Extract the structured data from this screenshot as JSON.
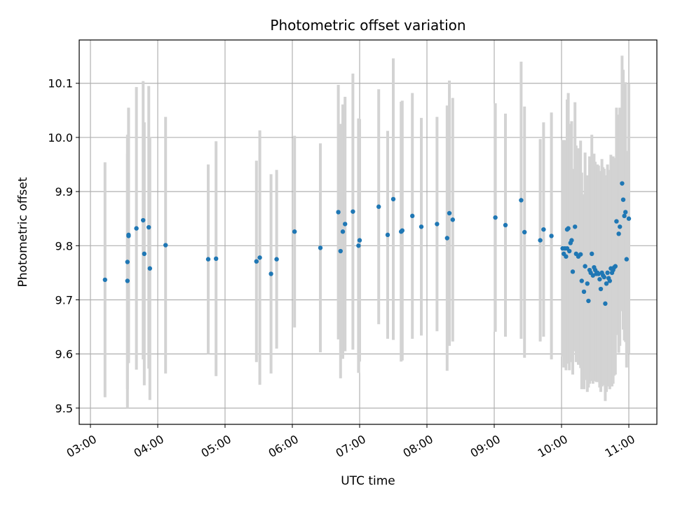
{
  "chart_data": {
    "type": "scatter",
    "title": "Photometric offset variation",
    "xlabel": "UTC time",
    "ylabel": "Photometric offset",
    "xlim": [
      "02:50",
      "11:25"
    ],
    "ylim": [
      9.47,
      10.18
    ],
    "xticks": [
      "03:00",
      "04:00",
      "05:00",
      "06:00",
      "07:00",
      "08:00",
      "09:00",
      "10:00",
      "11:00"
    ],
    "yticks": [
      "9.5",
      "9.6",
      "9.7",
      "9.8",
      "9.9",
      "10.0",
      "10.1"
    ],
    "grid": true,
    "legend": "none",
    "colors": {
      "point": "#1f77b4",
      "error_bar": "#d3d3d3",
      "grid": "#b0b0b0"
    },
    "series": [
      {
        "x": [
          "03:13",
          "03:33",
          "03:33",
          "03:34",
          "03:34",
          "03:41",
          "03:47",
          "03:48",
          "03:52",
          "03:53",
          "04:07",
          "04:45",
          "04:52",
          "05:28",
          "05:31",
          "05:41",
          "05:46",
          "06:02",
          "06:25",
          "06:41",
          "06:43",
          "06:45",
          "06:47",
          "06:54",
          "06:59",
          "07:00",
          "07:17",
          "07:25",
          "07:30",
          "07:37",
          "07:38",
          "07:47",
          "07:55",
          "08:09",
          "08:18",
          "08:20",
          "08:23",
          "09:01",
          "09:10",
          "09:24",
          "09:27",
          "09:41",
          "09:44",
          "09:51"
        ],
        "y": [
          9.737,
          9.77,
          9.735,
          9.82,
          9.818,
          9.832,
          9.847,
          9.785,
          9.834,
          9.758,
          9.801,
          9.775,
          9.776,
          9.771,
          9.778,
          9.748,
          9.775,
          9.826,
          9.796,
          9.862,
          9.79,
          9.826,
          9.84,
          9.863,
          9.8,
          9.81,
          9.872,
          9.82,
          9.886,
          9.826,
          9.828,
          9.855,
          9.835,
          9.84,
          9.814,
          9.86,
          9.848,
          9.852,
          9.838,
          9.884,
          9.825,
          9.81,
          9.83,
          9.818
        ],
        "err": [
          0.217,
          0.235,
          0.235,
          0.235,
          0.235,
          0.261,
          0.257,
          0.243,
          0.261,
          0.243,
          0.237,
          0.175,
          0.217,
          0.186,
          0.235,
          0.184,
          0.165,
          0.177,
          0.193,
          0.235,
          0.235,
          0.235,
          0.235,
          0.255,
          0.235,
          0.224,
          0.217,
          0.192,
          0.26,
          0.24,
          0.24,
          0.227,
          0.201,
          0.198,
          0.245,
          0.245,
          0.225,
          0.211,
          0.206,
          0.256,
          0.232,
          0.187,
          0.198,
          0.228
        ]
      },
      {
        "x": [
          "10:01",
          "10:02",
          "10:03",
          "10:04",
          "10:05",
          "10:05",
          "10:06",
          "10:07",
          "10:08",
          "10:09",
          "10:10",
          "10:12",
          "10:13",
          "10:15",
          "10:17",
          "10:18",
          "10:20",
          "10:21",
          "10:23",
          "10:24",
          "10:25",
          "10:26",
          "10:27",
          "10:28",
          "10:29",
          "10:30",
          "10:31",
          "10:32",
          "10:33",
          "10:34",
          "10:35",
          "10:36",
          "10:37",
          "10:38",
          "10:39",
          "10:40",
          "10:41",
          "10:42",
          "10:43",
          "10:44",
          "10:45",
          "10:46",
          "10:47",
          "10:48",
          "10:49",
          "10:51",
          "10:52",
          "10:54",
          "10:55",
          "10:56",
          "10:57",
          "10:58",
          "11:00"
        ],
        "y": [
          9.795,
          9.785,
          9.795,
          9.78,
          9.83,
          9.795,
          9.832,
          9.79,
          9.805,
          9.81,
          9.752,
          9.835,
          9.785,
          9.78,
          9.784,
          9.735,
          9.715,
          9.762,
          9.73,
          9.698,
          9.755,
          9.75,
          9.785,
          9.745,
          9.76,
          9.755,
          9.748,
          9.75,
          9.748,
          9.738,
          9.72,
          9.75,
          9.745,
          9.742,
          9.693,
          9.73,
          9.75,
          9.74,
          9.735,
          9.758,
          9.75,
          9.755,
          9.76,
          9.762,
          9.845,
          9.822,
          9.835,
          9.915,
          9.885,
          9.855,
          9.862,
          9.775,
          9.85
        ],
        "err": [
          0.2,
          0.21,
          0.2,
          0.21,
          0.24,
          0.21,
          0.25,
          0.22,
          0.22,
          0.22,
          0.19,
          0.23,
          0.2,
          0.2,
          0.21,
          0.2,
          0.18,
          0.21,
          0.2,
          0.16,
          0.21,
          0.2,
          0.22,
          0.2,
          0.21,
          0.2,
          0.2,
          0.2,
          0.2,
          0.2,
          0.19,
          0.21,
          0.2,
          0.2,
          0.18,
          0.2,
          0.2,
          0.2,
          0.2,
          0.21,
          0.21,
          0.21,
          0.2,
          0.2,
          0.21,
          0.22,
          0.22,
          0.236,
          0.24,
          0.23,
          0.24,
          0.2,
          0.25
        ]
      }
    ]
  }
}
